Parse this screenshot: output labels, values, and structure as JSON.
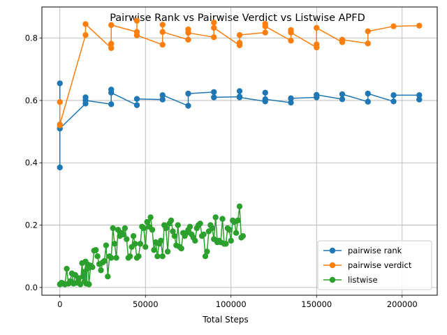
{
  "chart_data": {
    "type": "line",
    "title": "Pairwise Rank vs Pairwise Verdict vs Listwise APFD",
    "xlabel": "Total Steps",
    "ylabel": "",
    "xlim": [
      -10500,
      220500
    ],
    "ylim": [
      -0.025,
      0.9
    ],
    "x_ticks": [
      0,
      50000,
      100000,
      150000,
      200000
    ],
    "x_tick_labels": [
      "0",
      "50000",
      "100000",
      "150000",
      "200000"
    ],
    "y_ticks": [
      0.0,
      0.2,
      0.4,
      0.6,
      0.8
    ],
    "y_tick_labels": [
      "0.0",
      "0.2",
      "0.4",
      "0.6",
      "0.8"
    ],
    "grid": true,
    "legend_position": "lower-right",
    "series": [
      {
        "name": "pairwise rank",
        "color": "#1f77b4",
        "points": [
          [
            0,
            0.385
          ],
          [
            0,
            0.655
          ],
          [
            0,
            0.51
          ],
          [
            15000,
            0.59
          ],
          [
            15000,
            0.61
          ],
          [
            15000,
            0.6
          ],
          [
            30000,
            0.588
          ],
          [
            30000,
            0.635
          ],
          [
            30000,
            0.625
          ],
          [
            45000,
            0.585
          ],
          [
            45000,
            0.605
          ],
          [
            60000,
            0.603
          ],
          [
            60000,
            0.617
          ],
          [
            75000,
            0.583
          ],
          [
            75000,
            0.622
          ],
          [
            90000,
            0.627
          ],
          [
            90000,
            0.61
          ],
          [
            105000,
            0.612
          ],
          [
            105000,
            0.63
          ],
          [
            105000,
            0.61
          ],
          [
            120000,
            0.597
          ],
          [
            120000,
            0.625
          ],
          [
            120000,
            0.604
          ],
          [
            135000,
            0.593
          ],
          [
            135000,
            0.607
          ],
          [
            150000,
            0.61
          ],
          [
            150000,
            0.618
          ],
          [
            165000,
            0.604
          ],
          [
            165000,
            0.62
          ],
          [
            180000,
            0.596
          ],
          [
            180000,
            0.622
          ],
          [
            195000,
            0.597
          ],
          [
            195000,
            0.617
          ],
          [
            210000,
            0.617
          ],
          [
            210000,
            0.603
          ]
        ]
      },
      {
        "name": "pairwise verdict",
        "color": "#ff7f0e",
        "points": [
          [
            0,
            0.52
          ],
          [
            0,
            0.595
          ],
          [
            0,
            0.523
          ],
          [
            15000,
            0.81
          ],
          [
            15000,
            0.845
          ],
          [
            30000,
            0.768
          ],
          [
            30000,
            0.782
          ],
          [
            30000,
            0.842
          ],
          [
            45000,
            0.82
          ],
          [
            45000,
            0.856
          ],
          [
            45000,
            0.809
          ],
          [
            60000,
            0.779
          ],
          [
            60000,
            0.843
          ],
          [
            60000,
            0.82
          ],
          [
            75000,
            0.795
          ],
          [
            75000,
            0.828
          ],
          [
            75000,
            0.817
          ],
          [
            90000,
            0.803
          ],
          [
            90000,
            0.85
          ],
          [
            90000,
            0.833
          ],
          [
            105000,
            0.777
          ],
          [
            105000,
            0.785
          ],
          [
            105000,
            0.81
          ],
          [
            120000,
            0.818
          ],
          [
            120000,
            0.846
          ],
          [
            120000,
            0.838
          ],
          [
            135000,
            0.792
          ],
          [
            135000,
            0.826
          ],
          [
            135000,
            0.818
          ],
          [
            150000,
            0.77
          ],
          [
            150000,
            0.78
          ],
          [
            150000,
            0.833
          ],
          [
            165000,
            0.787
          ],
          [
            165000,
            0.795
          ],
          [
            180000,
            0.783
          ],
          [
            180000,
            0.822
          ],
          [
            195000,
            0.838
          ],
          [
            210000,
            0.84
          ]
        ]
      },
      {
        "name": "listwise",
        "color": "#2ca02c",
        "points": [
          [
            0,
            0.01
          ],
          [
            1000,
            0.015
          ],
          [
            2000,
            0.012
          ],
          [
            3000,
            0.01
          ],
          [
            4000,
            0.06
          ],
          [
            5000,
            0.012
          ],
          [
            6000,
            0.02
          ],
          [
            7000,
            0.045
          ],
          [
            8000,
            0.012
          ],
          [
            9000,
            0.04
          ],
          [
            10000,
            0.015
          ],
          [
            11000,
            0.03
          ],
          [
            12000,
            0.01
          ],
          [
            13000,
            0.078
          ],
          [
            13500,
            0.035
          ],
          [
            14000,
            0.05
          ],
          [
            14500,
            0.02
          ],
          [
            15000,
            0.083
          ],
          [
            15500,
            0.012
          ],
          [
            16000,
            0.06
          ],
          [
            16500,
            0.073
          ],
          [
            17000,
            0.01
          ],
          [
            18000,
            0.07
          ],
          [
            19000,
            0.065
          ],
          [
            20000,
            0.118
          ],
          [
            21000,
            0.12
          ],
          [
            22000,
            0.1
          ],
          [
            23000,
            0.075
          ],
          [
            24000,
            0.055
          ],
          [
            25000,
            0.08
          ],
          [
            26000,
            0.085
          ],
          [
            27000,
            0.135
          ],
          [
            28000,
            0.035
          ],
          [
            29000,
            0.1
          ],
          [
            30000,
            0.095
          ],
          [
            31000,
            0.19
          ],
          [
            32000,
            0.14
          ],
          [
            33000,
            0.095
          ],
          [
            34000,
            0.185
          ],
          [
            35000,
            0.165
          ],
          [
            36000,
            0.175
          ],
          [
            37000,
            0.17
          ],
          [
            38000,
            0.19
          ],
          [
            39000,
            0.155
          ],
          [
            40000,
            0.095
          ],
          [
            41000,
            0.1
          ],
          [
            42000,
            0.13
          ],
          [
            43000,
            0.165
          ],
          [
            44000,
            0.14
          ],
          [
            45000,
            0.095
          ],
          [
            46000,
            0.1
          ],
          [
            47000,
            0.14
          ],
          [
            48000,
            0.195
          ],
          [
            49000,
            0.19
          ],
          [
            50000,
            0.13
          ],
          [
            51000,
            0.21
          ],
          [
            52000,
            0.195
          ],
          [
            53000,
            0.225
          ],
          [
            54000,
            0.185
          ],
          [
            55000,
            0.12
          ],
          [
            56000,
            0.145
          ],
          [
            57000,
            0.1
          ],
          [
            58000,
            0.14
          ],
          [
            59000,
            0.15
          ],
          [
            60000,
            0.1
          ],
          [
            61000,
            0.2
          ],
          [
            62000,
            0.19
          ],
          [
            63000,
            0.115
          ],
          [
            64000,
            0.205
          ],
          [
            65000,
            0.215
          ],
          [
            66000,
            0.18
          ],
          [
            67000,
            0.165
          ],
          [
            68000,
            0.135
          ],
          [
            69000,
            0.2
          ],
          [
            70000,
            0.13
          ],
          [
            71000,
            0.125
          ],
          [
            72000,
            0.175
          ],
          [
            73000,
            0.165
          ],
          [
            74000,
            0.175
          ],
          [
            75000,
            0.185
          ],
          [
            76000,
            0.195
          ],
          [
            77000,
            0.17
          ],
          [
            78000,
            0.16
          ],
          [
            79000,
            0.15
          ],
          [
            80000,
            0.19
          ],
          [
            81000,
            0.2
          ],
          [
            82000,
            0.205
          ],
          [
            83000,
            0.165
          ],
          [
            84000,
            0.17
          ],
          [
            85000,
            0.1
          ],
          [
            86000,
            0.115
          ],
          [
            87000,
            0.18
          ],
          [
            88000,
            0.2
          ],
          [
            89000,
            0.19
          ],
          [
            90000,
            0.155
          ],
          [
            91000,
            0.225
          ],
          [
            92000,
            0.145
          ],
          [
            93000,
            0.15
          ],
          [
            94000,
            0.145
          ],
          [
            95000,
            0.22
          ],
          [
            96000,
            0.14
          ],
          [
            97000,
            0.14
          ],
          [
            98000,
            0.19
          ],
          [
            99000,
            0.185
          ],
          [
            100000,
            0.15
          ],
          [
            101000,
            0.215
          ],
          [
            102000,
            0.21
          ],
          [
            103000,
            0.175
          ],
          [
            104000,
            0.215
          ],
          [
            105000,
            0.26
          ],
          [
            106000,
            0.16
          ],
          [
            107000,
            0.165
          ]
        ]
      }
    ]
  }
}
